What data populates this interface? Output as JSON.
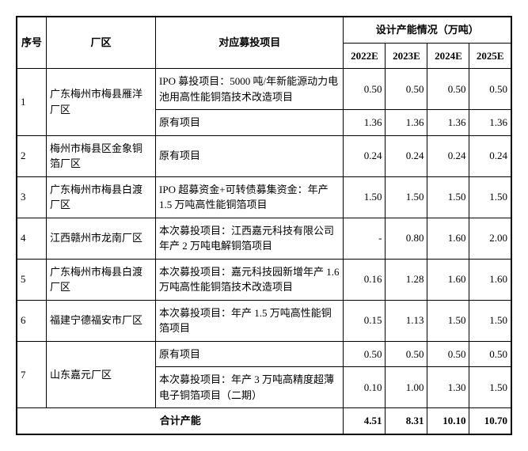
{
  "headers": {
    "seq": "序号",
    "zone": "厂区",
    "proj": "对应募投项目",
    "cap_group": "设计产能情况（万吨）",
    "y2022": "2022E",
    "y2023": "2023E",
    "y2024": "2024E",
    "y2025": "2025E"
  },
  "rows": [
    {
      "seq": "1",
      "zone": "广东梅州市梅县雁洋厂区",
      "sub": [
        {
          "proj": "IPO 募投项目：5000 吨/年新能源动力电池用高性能铜箔技术改造项目",
          "v": [
            "0.50",
            "0.50",
            "0.50",
            "0.50"
          ]
        },
        {
          "proj": "原有项目",
          "v": [
            "1.36",
            "1.36",
            "1.36",
            "1.36"
          ]
        }
      ]
    },
    {
      "seq": "2",
      "zone": "梅州市梅县区金象铜箔厂区",
      "sub": [
        {
          "proj": "原有项目",
          "v": [
            "0.24",
            "0.24",
            "0.24",
            "0.24"
          ]
        }
      ]
    },
    {
      "seq": "3",
      "zone": "广东梅州市梅县白渡厂区",
      "sub": [
        {
          "proj": "IPO 超募资金+可转债募集资金：年产 1.5 万吨高性能铜箔项目",
          "v": [
            "1.50",
            "1.50",
            "1.50",
            "1.50"
          ]
        }
      ]
    },
    {
      "seq": "4",
      "zone": "江西赣州市龙南厂区",
      "sub": [
        {
          "proj": "本次募投项目：江西嘉元科技有限公司年产 2 万吨电解铜箔项目",
          "v": [
            "-",
            "0.80",
            "1.60",
            "2.00"
          ]
        }
      ]
    },
    {
      "seq": "5",
      "zone": "广东梅州市梅县白渡厂区",
      "sub": [
        {
          "proj": "本次募投项目：嘉元科技园新增年产 1.6 万吨高性能铜箔技术改造项目",
          "v": [
            "0.16",
            "1.28",
            "1.60",
            "1.60"
          ]
        }
      ]
    },
    {
      "seq": "6",
      "zone": "福建宁德福安市厂区",
      "sub": [
        {
          "proj": "本次募投项目：年产 1.5 万吨高性能铜箔项目",
          "v": [
            "0.15",
            "1.13",
            "1.50",
            "1.50"
          ]
        }
      ]
    },
    {
      "seq": "7",
      "zone": "山东嘉元厂区",
      "sub": [
        {
          "proj": "原有项目",
          "v": [
            "0.50",
            "0.50",
            "0.50",
            "0.50"
          ]
        },
        {
          "proj": "本次募投项目：年产 3 万吨高精度超薄电子铜箔项目（二期）",
          "v": [
            "0.10",
            "1.00",
            "1.30",
            "1.50"
          ]
        }
      ]
    }
  ],
  "total": {
    "label": "合计产能",
    "v": [
      "4.51",
      "8.31",
      "10.10",
      "10.70"
    ]
  }
}
